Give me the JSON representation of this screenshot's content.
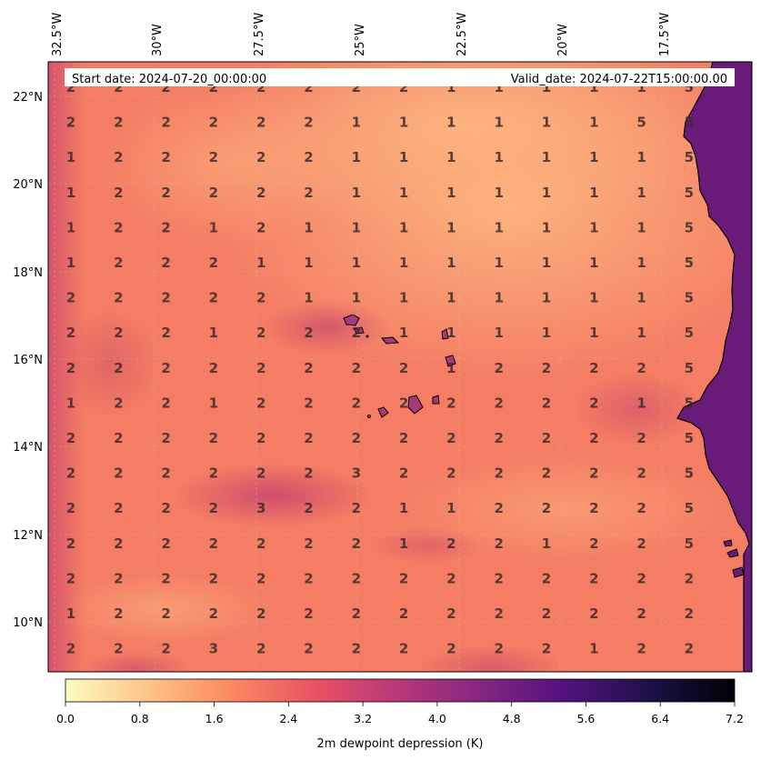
{
  "header": {
    "start_date": "Start date: 2024-07-20_00:00:00",
    "valid_date": "Valid_date: 2024-07-22T15:00:00.00"
  },
  "axes": {
    "lon_labels": [
      "32.5°W",
      "30°W",
      "27.5°W",
      "25°W",
      "22.5°W",
      "20°W",
      "17.5°W"
    ],
    "lat_labels": [
      "22°N",
      "20°N",
      "18°N",
      "16°N",
      "14°N",
      "12°N",
      "10°N"
    ]
  },
  "colorbar": {
    "label": "2m dewpoint depression (K)",
    "ticks": [
      "0.0",
      "0.8",
      "1.6",
      "2.4",
      "3.2",
      "4.0",
      "4.8",
      "5.6",
      "6.4",
      "7.2"
    ],
    "range": [
      0.0,
      7.2
    ],
    "colormap": "magma_r",
    "stops": [
      "#fcfdbf",
      "#fec287",
      "#fb8861",
      "#e75263",
      "#b73779",
      "#822681",
      "#51127c",
      "#1d1147",
      "#000004"
    ]
  },
  "grid_values": [
    "22222222111115",
    "22222211111155",
    "12222211111115",
    "12222211111115",
    "12212111111115",
    "12221111111115",
    "22222111111115",
    "22212221111115",
    "22222222122225",
    "12212222222215",
    "22222222222225",
    "22222232222225",
    "22223221122225",
    "22222221221225",
    "22222222222222",
    "12222222222222",
    "22232222222122"
  ],
  "grid_rows": [
    {
      "row": "22222222111115"
    },
    {
      "row": "22222211111155"
    },
    {
      "row": "12222211111115"
    },
    {
      "row": "12222211111115"
    },
    {
      "row": "12212111111115"
    },
    {
      "row": "12221111111115"
    },
    {
      "row": "22222111111115"
    },
    {
      "row": "22212221111115"
    },
    {
      "row": "22222222122225"
    },
    {
      "row": "12212222222215"
    },
    {
      "row": "22222222222225"
    },
    {
      "row": "22222232222225"
    },
    {
      "row": "22223221122225"
    },
    {
      "row": "22222221221225"
    },
    {
      "row": "22222222222222"
    },
    {
      "row": "12222222222222"
    },
    {
      "row": "22232222222122"
    }
  ]
}
